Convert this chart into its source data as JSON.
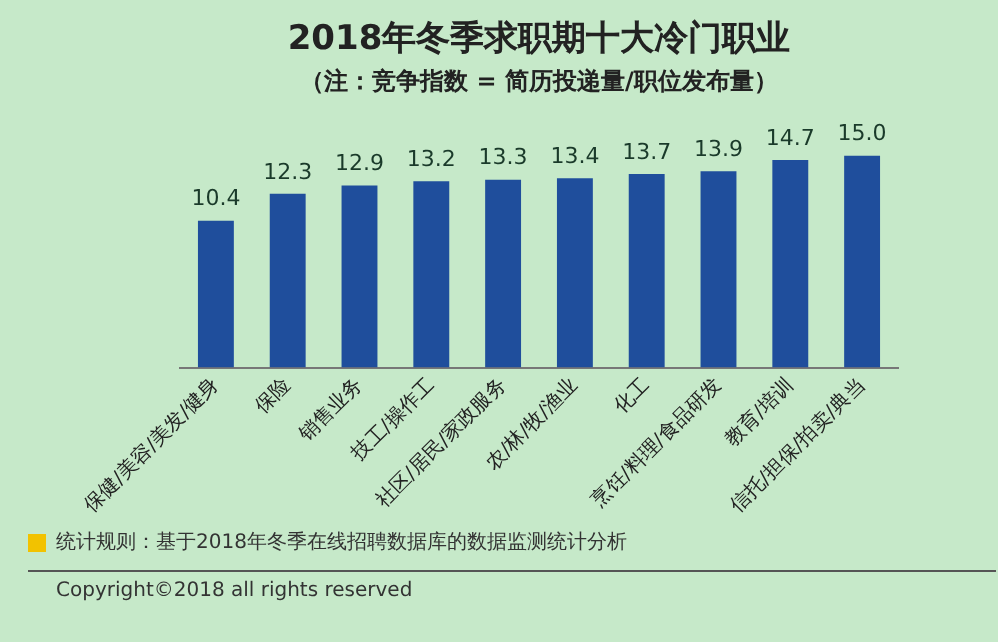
{
  "chart_data": {
    "type": "bar",
    "title": "2018年冬季求职期十大冷门职业",
    "subtitle": "（注：竞争指数 = 简历投递量/职位发布量）",
    "categories": [
      "保健/美容/美发/健身",
      "保险",
      "销售业务",
      "技工/操作工",
      "社区/居民/家政服务",
      "农/林/牧/渔业",
      "化工",
      "烹饪/料理/食品研发",
      "教育/培训",
      "信托/担保/拍卖/典当"
    ],
    "values": [
      10.4,
      12.3,
      12.9,
      13.2,
      13.3,
      13.4,
      13.7,
      13.9,
      14.7,
      15.0
    ],
    "value_labels": [
      "10.4",
      "12.3",
      "12.9",
      "13.2",
      "13.3",
      "13.4",
      "13.7",
      "13.9",
      "14.7",
      "15.0"
    ],
    "color": "#1f4e9c",
    "tick_labels": "x",
    "grid": false,
    "legend": false,
    "annotations": [
      "统计规则：基于2018年冬季在线招聘数据库的数据监测统计分析",
      "Copyright©2018 all rights reserved"
    ]
  }
}
